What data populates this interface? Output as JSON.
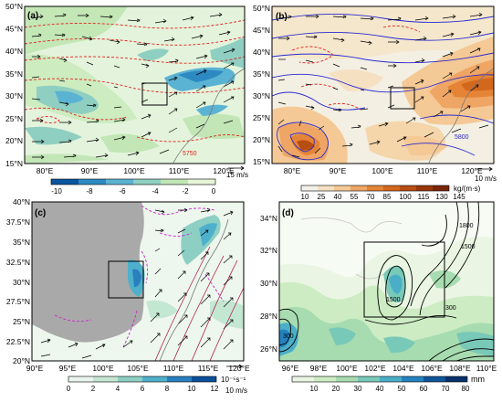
{
  "panels": {
    "a": {
      "label": "(a)",
      "lat_ticks": [
        "50°N",
        "45°N",
        "40°N",
        "35°N",
        "30°N",
        "25°N",
        "20°N",
        "15°N"
      ],
      "lon_ticks": [
        "80°E",
        "90°E",
        "100°E",
        "110°E",
        "120°E"
      ],
      "colorbar_ticks": [
        "-10",
        "-8",
        "-6",
        "-4",
        "-2",
        "0"
      ],
      "vector_ref_value": "15 m/s",
      "contour_label": "5750"
    },
    "b": {
      "label": "(b)",
      "lat_ticks": [
        "50°N",
        "45°N",
        "40°N",
        "35°N",
        "30°N",
        "25°N",
        "20°N",
        "15°N"
      ],
      "lon_ticks": [
        "80°E",
        "90°E",
        "100°E",
        "110°E",
        "120°E"
      ],
      "colorbar_ticks": [
        "10",
        "25",
        "40",
        "55",
        "70",
        "85",
        "100",
        "115",
        "130",
        "145"
      ],
      "colorbar_unit": "kg/(m·s)",
      "vector_ref_value": "10 m/s",
      "contour_label": "5800"
    },
    "c": {
      "label": "(c)",
      "lat_ticks": [
        "40°N",
        "37.5°N",
        "35°N",
        "32.5°N",
        "30°N",
        "27.5°N",
        "25°N",
        "22.5°N",
        "20°N"
      ],
      "lon_ticks": [
        "90°E",
        "95°E",
        "100°E",
        "105°E",
        "110°E",
        "115°E",
        "120°E"
      ],
      "colorbar_ticks": [
        "0",
        "2",
        "4",
        "6",
        "8",
        "10",
        "12"
      ],
      "colorbar_unit": "10⁻⁵s⁻¹",
      "vector_ref_value": "10 m/s"
    },
    "d": {
      "label": "(d)",
      "lat_ticks": [
        "34°N",
        "32°N",
        "30°N",
        "28°N",
        "26°N"
      ],
      "lon_ticks": [
        "96°E",
        "98°E",
        "100°E",
        "102°E",
        "104°E",
        "106°E",
        "108°E",
        "110°E"
      ],
      "colorbar_ticks": [
        "10",
        "20",
        "30",
        "40",
        "50",
        "60",
        "70",
        "80"
      ],
      "colorbar_unit": "mm",
      "contour_labels": [
        "1800",
        "1500",
        "1500",
        "300",
        "300"
      ]
    }
  },
  "colors": {
    "red_contour": "#e0221f",
    "blue_contour": "#2a2ad0",
    "magenta_contour": "#cc22cc",
    "terrain_gray": "#a9a9a9",
    "cmap_a": [
      "#0a55a0",
      "#2c89c2",
      "#5bb3d3",
      "#8fcfc1",
      "#c2e6b6",
      "#e7f5d8"
    ],
    "cmap_b": [
      "#f2f2ea",
      "#f5e1c2",
      "#f5c995",
      "#efa665",
      "#e58436",
      "#d3671c",
      "#b84d12",
      "#99380c",
      "#7a2608"
    ],
    "cmap_c": [
      "#e9f5ee",
      "#c4e7d2",
      "#8ecfc3",
      "#4fb0cc",
      "#2a7fbf",
      "#0c4f9a"
    ],
    "cmap_d": [
      "#eaf6e3",
      "#cdecc3",
      "#a7dcb0",
      "#79c9b8",
      "#4aaec8",
      "#2582bf",
      "#0f5598",
      "#08306b"
    ]
  }
}
